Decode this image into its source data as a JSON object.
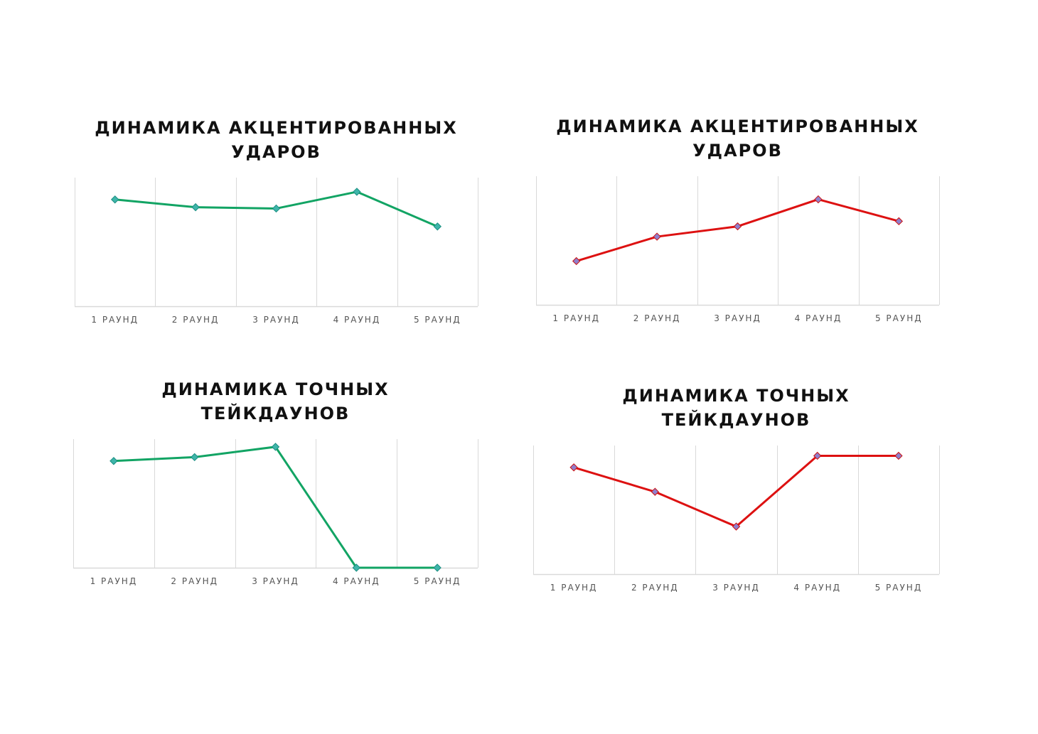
{
  "colors": {
    "green": "#12a464",
    "red": "#dd1111",
    "grid": "#d9d9d9",
    "green_marker": "#3fb5a9",
    "red_marker": "#8f7fcc"
  },
  "chart_data": [
    {
      "type": "line",
      "title": "ДИНАМИКА АКЦЕНТИРОВАННЫХ\nУДАРОВ",
      "categories": [
        "1 РАУНД",
        "2 РАУНД",
        "3 РАУНД",
        "4 РАУНД",
        "5 РАУНД"
      ],
      "series": [
        {
          "values": [
            8.3,
            7.7,
            7.6,
            8.9,
            6.2
          ],
          "color": "#12a464",
          "marker": "diamond"
        }
      ],
      "ylim": [
        0,
        10
      ],
      "grid": "vertical",
      "legend": "none"
    },
    {
      "type": "line",
      "title": "ДИНАМИКА АКЦЕНТИРОВАННЫХ\nУДАРОВ",
      "categories": [
        "1 РАУНД",
        "2 РАУНД",
        "3 РАУНД",
        "4 РАУНД",
        "5 РАУНД"
      ],
      "series": [
        {
          "values": [
            3.4,
            5.3,
            6.1,
            8.2,
            6.5
          ],
          "color": "#dd1111",
          "marker": "diamond"
        }
      ],
      "ylim": [
        0,
        10
      ],
      "grid": "vertical",
      "legend": "none"
    },
    {
      "type": "line",
      "title": "ДИНАМИКА ТОЧНЫХ\nТЕЙКДАУНОВ",
      "categories": [
        "1 РАУНД",
        "2 РАУНД",
        "3 РАУНД",
        "4 РАУНД",
        "5 РАУНД"
      ],
      "series": [
        {
          "values": [
            8.3,
            8.6,
            9.4,
            0,
            0
          ],
          "color": "#12a464",
          "marker": "diamond"
        }
      ],
      "ylim": [
        0,
        10
      ],
      "grid": "vertical",
      "legend": "none"
    },
    {
      "type": "line",
      "title": "ДИНАМИКА ТОЧНЫХ\nТЕЙКДАУНОВ",
      "categories": [
        "1 РАУНД",
        "2 РАУНД",
        "3 РАУНД",
        "4 РАУНД",
        "5 РАУНД"
      ],
      "series": [
        {
          "values": [
            8.3,
            6.4,
            3.7,
            9.2,
            9.2
          ],
          "color": "#dd1111",
          "marker": "diamond"
        }
      ],
      "ylim": [
        0,
        10
      ],
      "grid": "vertical",
      "legend": "none"
    }
  ]
}
